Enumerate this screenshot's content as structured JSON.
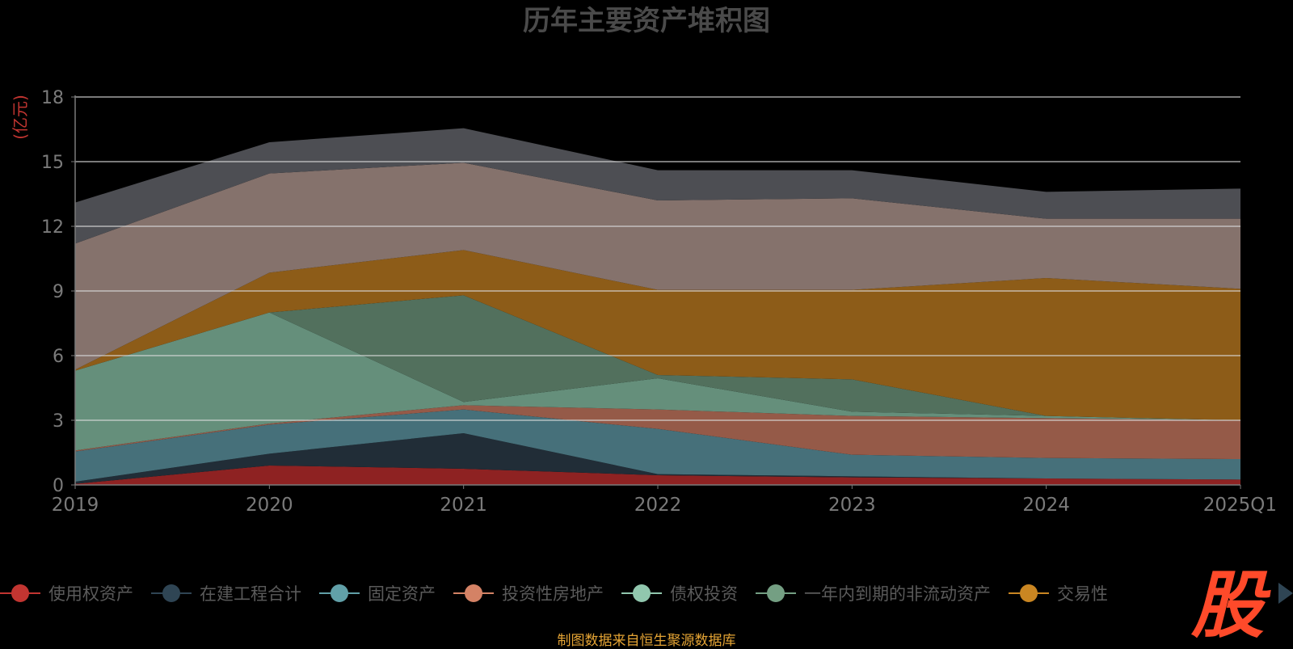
{
  "footer": "制图数据来自恒生聚源数据库",
  "watermark": "股",
  "colors": {
    "background": "#000000",
    "axis": "#7a7a7a",
    "grid": "#d9d9d9",
    "unit": "#c23531",
    "footer": "#e5a434",
    "watermark": "#ff4a2a"
  },
  "chart_data": {
    "type": "area",
    "stacked": true,
    "title": "历年主要资产堆积图",
    "unit_label": "(亿元)",
    "x": [
      "2019",
      "2020",
      "2021",
      "2022",
      "2023",
      "2024",
      "2025Q1"
    ],
    "ylim": [
      0,
      18
    ],
    "yticks": [
      0,
      3,
      6,
      9,
      12,
      15,
      18
    ],
    "grid": true,
    "legend_position": "bottom",
    "series": [
      {
        "name": "使用权资产",
        "color": "#8e2222",
        "legend_color": "#c23531",
        "values": [
          0.05,
          0.9,
          0.75,
          0.45,
          0.35,
          0.3,
          0.25
        ]
      },
      {
        "name": "在建工程合计",
        "color": "#212d37",
        "legend_color": "#2f4554",
        "values": [
          0.1,
          0.55,
          1.65,
          0.05,
          0.05,
          0.0,
          0.0
        ]
      },
      {
        "name": "固定资产",
        "color": "#46707a",
        "legend_color": "#61a0a8",
        "values": [
          1.4,
          1.35,
          1.1,
          2.1,
          1.0,
          0.95,
          0.95
        ]
      },
      {
        "name": "投资性房地产",
        "color": "#955a48",
        "legend_color": "#d48265",
        "values": [
          0.05,
          0.05,
          0.2,
          0.9,
          1.8,
          1.85,
          1.8
        ]
      },
      {
        "name": "债权投资",
        "color": "#658f7b",
        "legend_color": "#91c7ae",
        "values": [
          3.7,
          5.15,
          0.15,
          1.45,
          0.2,
          0.1,
          0.0
        ]
      },
      {
        "name": "一年内到期的非流动资产",
        "color": "#52705d",
        "legend_color": "#749f83",
        "values": [
          0.0,
          0.0,
          4.95,
          0.15,
          1.5,
          0.0,
          0.0
        ]
      },
      {
        "name": "交易性金融资产",
        "legend_name": "交易性",
        "color": "#8d5c18",
        "legend_color": "#ca8622",
        "values": [
          0.05,
          1.85,
          2.1,
          3.95,
          4.15,
          6.4,
          6.1
        ]
      },
      {
        "name": "",
        "color": "#85726c",
        "values": [
          5.85,
          4.6,
          4.05,
          4.15,
          4.25,
          2.75,
          3.25
        ]
      },
      {
        "name": "",
        "color": "#4d4e53",
        "values": [
          1.9,
          1.45,
          1.6,
          1.4,
          1.3,
          1.25,
          1.4
        ]
      }
    ]
  }
}
